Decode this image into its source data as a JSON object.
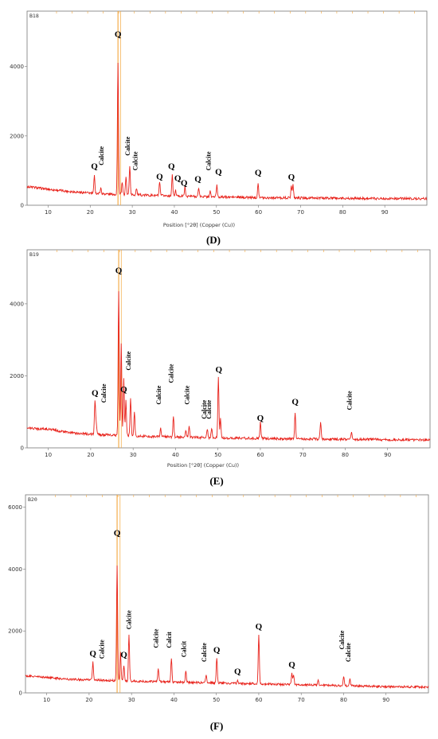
{
  "chart_data": [
    {
      "type": "line",
      "panel_label": "(D)",
      "sample_id": "B18",
      "xlabel": "Position [°2θ] (Copper (Cu))",
      "ylabel": "",
      "xlim": [
        5,
        100
      ],
      "ylim": [
        0,
        5600
      ],
      "x_ticks": [
        10,
        20,
        30,
        40,
        50,
        60,
        70,
        80,
        90
      ],
      "y_ticks": [
        0,
        2000,
        4000
      ],
      "baseline": [
        [
          5,
          540
        ],
        [
          10,
          460
        ],
        [
          15,
          400
        ],
        [
          20,
          350
        ],
        [
          25,
          320
        ],
        [
          30,
          300
        ],
        [
          40,
          270
        ],
        [
          50,
          240
        ],
        [
          60,
          220
        ],
        [
          70,
          210
        ],
        [
          80,
          200
        ],
        [
          90,
          195
        ],
        [
          100,
          190
        ]
      ],
      "peaks": [
        [
          21,
          850
        ],
        [
          22.5,
          500
        ],
        [
          26.6,
          4100
        ],
        [
          27.6,
          650
        ],
        [
          28.5,
          830
        ],
        [
          29.4,
          1150
        ],
        [
          31,
          500
        ],
        [
          36.5,
          650
        ],
        [
          39.5,
          870
        ],
        [
          40.3,
          420
        ],
        [
          42.5,
          520
        ],
        [
          45.8,
          500
        ],
        [
          48.5,
          400
        ],
        [
          50.1,
          580
        ],
        [
          59.9,
          650
        ],
        [
          67.8,
          560
        ],
        [
          68.2,
          580
        ]
      ],
      "reference_lines": [
        26.6,
        27.2
      ],
      "annotations": [
        {
          "x": 26.6,
          "y": 4850,
          "text": "Q",
          "kind": "Q"
        },
        {
          "x": 21,
          "y": 1050,
          "text": "Q",
          "kind": "Q"
        },
        {
          "x": 23.2,
          "y": 1150,
          "text": "Calcite",
          "kind": "C"
        },
        {
          "x": 29.4,
          "y": 1430,
          "text": "Calcite",
          "kind": "C"
        },
        {
          "x": 31.2,
          "y": 1000,
          "text": "Calcite",
          "kind": "C"
        },
        {
          "x": 36.5,
          "y": 750,
          "text": "Q",
          "kind": "Q"
        },
        {
          "x": 39.3,
          "y": 1050,
          "text": "Q",
          "kind": "Q"
        },
        {
          "x": 40.8,
          "y": 700,
          "text": "Q",
          "kind": "Q"
        },
        {
          "x": 42.3,
          "y": 560,
          "text": "Q",
          "kind": "Q"
        },
        {
          "x": 45.6,
          "y": 680,
          "text": "Q",
          "kind": "Q"
        },
        {
          "x": 48.6,
          "y": 1000,
          "text": "Calcite",
          "kind": "C"
        },
        {
          "x": 50.5,
          "y": 880,
          "text": "Q",
          "kind": "Q"
        },
        {
          "x": 59.9,
          "y": 860,
          "text": "Q",
          "kind": "Q"
        },
        {
          "x": 67.8,
          "y": 740,
          "text": "Q",
          "kind": "Q"
        }
      ]
    },
    {
      "type": "line",
      "panel_label": "(E)",
      "sample_id": "B19",
      "xlabel": "Position [°2θ] (Copper (Cu))",
      "ylabel": "",
      "xlim": [
        5,
        100
      ],
      "ylim": [
        0,
        5500
      ],
      "x_ticks": [
        10,
        20,
        30,
        40,
        50,
        60,
        70,
        80,
        90
      ],
      "y_ticks": [
        0,
        2000,
        4000
      ],
      "baseline": [
        [
          5,
          550
        ],
        [
          10,
          520
        ],
        [
          15,
          420
        ],
        [
          20,
          380
        ],
        [
          25,
          350
        ],
        [
          30,
          330
        ],
        [
          40,
          300
        ],
        [
          50,
          280
        ],
        [
          60,
          260
        ],
        [
          70,
          250
        ],
        [
          80,
          240
        ],
        [
          90,
          230
        ],
        [
          100,
          220
        ]
      ],
      "peaks": [
        [
          21,
          1300
        ],
        [
          21.3,
          700
        ],
        [
          26.6,
          4350
        ],
        [
          27.2,
          2900
        ],
        [
          27.8,
          1900
        ],
        [
          28.3,
          1300
        ],
        [
          29.4,
          1400
        ],
        [
          30.3,
          1000
        ],
        [
          36.5,
          550
        ],
        [
          39.5,
          850
        ],
        [
          42.4,
          500
        ],
        [
          43.2,
          600
        ],
        [
          47.5,
          500
        ],
        [
          48.5,
          550
        ],
        [
          50.1,
          2000
        ],
        [
          50.6,
          800
        ],
        [
          60,
          700
        ],
        [
          68.2,
          1000
        ],
        [
          74.2,
          700
        ],
        [
          81.5,
          450
        ]
      ],
      "reference_lines": [
        26.6,
        27.2
      ],
      "annotations": [
        {
          "x": 26.6,
          "y": 4850,
          "text": "Q",
          "kind": "Q"
        },
        {
          "x": 21,
          "y": 1450,
          "text": "Q",
          "kind": "Q"
        },
        {
          "x": 23.6,
          "y": 1250,
          "text": "Calcite",
          "kind": "C"
        },
        {
          "x": 27.8,
          "y": 1550,
          "text": "Q",
          "kind": "Q"
        },
        {
          "x": 29.4,
          "y": 2150,
          "text": "Calcite",
          "kind": "C"
        },
        {
          "x": 36.5,
          "y": 1200,
          "text": "Calcite",
          "kind": "C"
        },
        {
          "x": 39.5,
          "y": 1800,
          "text": "Calcite",
          "kind": "C"
        },
        {
          "x": 43.2,
          "y": 1200,
          "text": "Calcite",
          "kind": "C"
        },
        {
          "x": 47.2,
          "y": 800,
          "text": "Calcite",
          "kind": "C"
        },
        {
          "x": 48.4,
          "y": 800,
          "text": "Calcite",
          "kind": "C"
        },
        {
          "x": 50.2,
          "y": 2100,
          "text": "Q",
          "kind": "Q"
        },
        {
          "x": 60,
          "y": 750,
          "text": "Q",
          "kind": "Q"
        },
        {
          "x": 68.2,
          "y": 1200,
          "text": "Q",
          "kind": "Q"
        },
        {
          "x": 81.5,
          "y": 1050,
          "text": "Calcite",
          "kind": "C"
        }
      ]
    },
    {
      "type": "line",
      "panel_label": "(F)",
      "sample_id": "B20",
      "xlabel": "",
      "ylabel": "",
      "xlim": [
        5,
        100
      ],
      "ylim": [
        0,
        6400
      ],
      "x_ticks": [
        10,
        20,
        30,
        40,
        50,
        60,
        70,
        80,
        90
      ],
      "y_ticks": [
        0,
        2000,
        4000,
        6000
      ],
      "baseline": [
        [
          5,
          550
        ],
        [
          10,
          500
        ],
        [
          15,
          440
        ],
        [
          20,
          420
        ],
        [
          25,
          400
        ],
        [
          30,
          380
        ],
        [
          40,
          350
        ],
        [
          50,
          320
        ],
        [
          60,
          290
        ],
        [
          70,
          260
        ],
        [
          80,
          230
        ],
        [
          90,
          200
        ],
        [
          100,
          190
        ]
      ],
      "peaks": [
        [
          20.9,
          1000
        ],
        [
          26.6,
          4150
        ],
        [
          27.4,
          1300
        ],
        [
          28.2,
          900
        ],
        [
          29.4,
          1900
        ],
        [
          36.3,
          800
        ],
        [
          39.4,
          1100
        ],
        [
          42.8,
          700
        ],
        [
          47.6,
          600
        ],
        [
          50.1,
          1150
        ],
        [
          55,
          400
        ],
        [
          60,
          1900
        ],
        [
          67.8,
          650
        ],
        [
          68.2,
          600
        ],
        [
          74,
          400
        ],
        [
          80,
          550
        ],
        [
          81.5,
          450
        ]
      ],
      "reference_lines": [
        26.6,
        27.3
      ],
      "annotations": [
        {
          "x": 26.6,
          "y": 5080,
          "text": "Q",
          "kind": "Q"
        },
        {
          "x": 20.9,
          "y": 1180,
          "text": "Q",
          "kind": "Q"
        },
        {
          "x": 23.5,
          "y": 1100,
          "text": "Calcite",
          "kind": "C"
        },
        {
          "x": 28.2,
          "y": 1150,
          "text": "Q",
          "kind": "Q"
        },
        {
          "x": 29.9,
          "y": 2050,
          "text": "Calcite",
          "kind": "C"
        },
        {
          "x": 36.3,
          "y": 1450,
          "text": "Calcite",
          "kind": "C"
        },
        {
          "x": 39.4,
          "y": 1450,
          "text": "Calcit",
          "kind": "C"
        },
        {
          "x": 42.8,
          "y": 1150,
          "text": "Calcit",
          "kind": "C"
        },
        {
          "x": 47.6,
          "y": 1000,
          "text": "Calcite",
          "kind": "C"
        },
        {
          "x": 50.1,
          "y": 1300,
          "text": "Q",
          "kind": "Q"
        },
        {
          "x": 55,
          "y": 600,
          "text": "Q",
          "kind": "Q"
        },
        {
          "x": 60,
          "y": 2060,
          "text": "Q",
          "kind": "Q"
        },
        {
          "x": 67.8,
          "y": 820,
          "text": "Q",
          "kind": "Q"
        },
        {
          "x": 80.1,
          "y": 1400,
          "text": "Calcite",
          "kind": "C"
        },
        {
          "x": 81.6,
          "y": 1000,
          "text": "Calcite",
          "kind": "C"
        }
      ]
    }
  ],
  "colors": {
    "trace": "#e8221b",
    "reference": "#f3a53a",
    "axis": "#777777",
    "text": "#000000"
  }
}
